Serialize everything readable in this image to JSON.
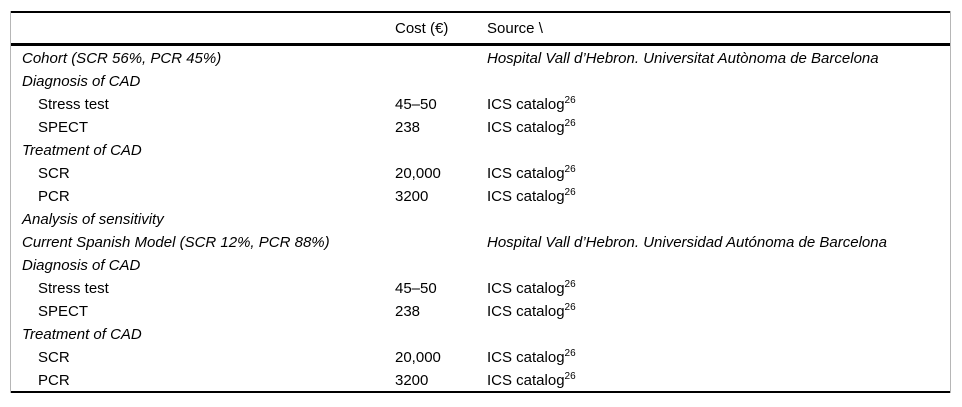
{
  "table": {
    "columns": {
      "label": "",
      "cost": "Cost (€)",
      "source": "Source \\"
    },
    "rows": [
      {
        "label": "Cohort (SCR 56%, PCR 45%)",
        "cost": "",
        "source": "Hospital Vall d’Hebron. Universitat Autònoma de Barcelona"
      },
      {
        "label": "Diagnosis of CAD",
        "cost": "",
        "source": ""
      },
      {
        "label": "Stress test",
        "cost": "45–50",
        "source": "ICS catalog",
        "source_sup": "26"
      },
      {
        "label": "SPECT",
        "cost": "238",
        "source": "ICS catalog",
        "source_sup": "26"
      },
      {
        "label": "Treatment of CAD",
        "cost": "",
        "source": ""
      },
      {
        "label": "SCR",
        "cost": "20,000",
        "source": "ICS catalog",
        "source_sup": "26"
      },
      {
        "label": "PCR",
        "cost": "3200",
        "source": "ICS catalog",
        "source_sup": "26"
      },
      {
        "label": "Analysis of sensitivity",
        "cost": "",
        "source": ""
      },
      {
        "label": "Current Spanish Model (SCR 12%, PCR 88%)",
        "cost": "",
        "source": "Hospital Vall d’Hebron. Universidad Autónoma de Barcelona"
      },
      {
        "label": "Diagnosis of CAD",
        "cost": "",
        "source": ""
      },
      {
        "label": "Stress test",
        "cost": "45–50",
        "source": "ICS catalog",
        "source_sup": "26"
      },
      {
        "label": "SPECT",
        "cost": "238",
        "source": "ICS catalog",
        "source_sup": "26"
      },
      {
        "label": "Treatment of CAD",
        "cost": "",
        "source": ""
      },
      {
        "label": "SCR",
        "cost": "20,000",
        "source": "ICS catalog",
        "source_sup": "26"
      },
      {
        "label": "PCR",
        "cost": "3200",
        "source": "ICS catalog",
        "source_sup": "26"
      }
    ]
  }
}
